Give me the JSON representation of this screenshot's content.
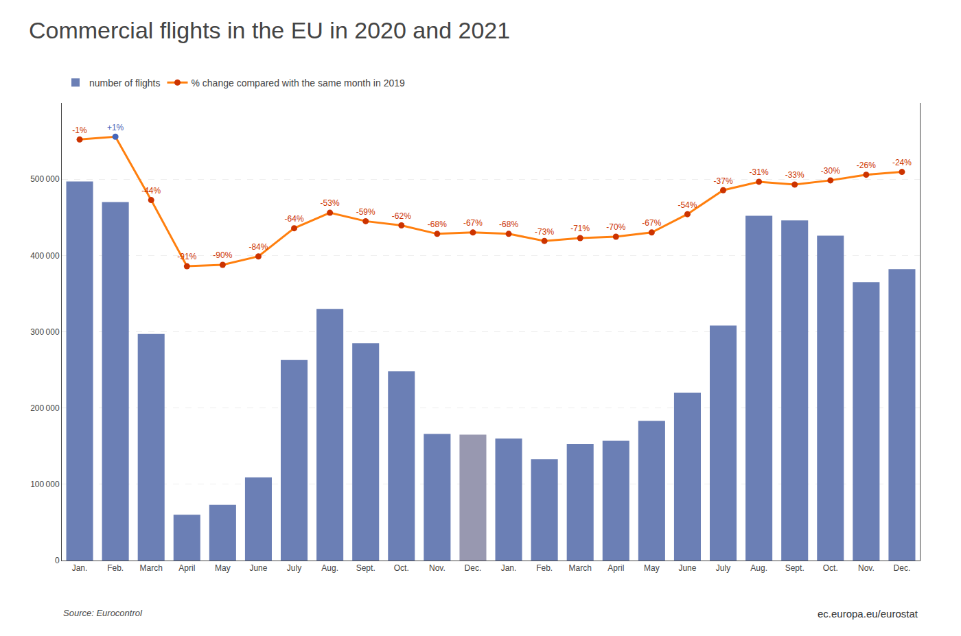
{
  "chart_data": {
    "type": "bar",
    "title": "Commercial flights in the EU in 2020 and 2021",
    "categories": [
      "Jan.",
      "Feb.",
      "March",
      "April",
      "May",
      "June",
      "July",
      "Aug.",
      "Sept.",
      "Oct.",
      "Nov.",
      "Dec.",
      "Jan.",
      "Feb.",
      "March",
      "April",
      "May",
      "June",
      "July",
      "Aug.",
      "Sept.",
      "Oct.",
      "Nov.",
      "Dec."
    ],
    "series": [
      {
        "name": "number of flights",
        "type": "bar",
        "colors": [
          "#6b7fb5",
          "#6b7fb5",
          "#6b7fb5",
          "#6b7fb5",
          "#6b7fb5",
          "#6b7fb5",
          "#6b7fb5",
          "#6b7fb5",
          "#6b7fb5",
          "#6b7fb5",
          "#6b7fb5",
          "#9898b0",
          "#6b7fb5",
          "#6b7fb5",
          "#6b7fb5",
          "#6b7fb5",
          "#6b7fb5",
          "#6b7fb5",
          "#6b7fb5",
          "#6b7fb5",
          "#6b7fb5",
          "#6b7fb5",
          "#6b7fb5",
          "#6b7fb5"
        ],
        "values": [
          497000,
          470000,
          297000,
          60000,
          73000,
          109000,
          263000,
          330000,
          285000,
          248000,
          166000,
          165000,
          160000,
          133000,
          153000,
          157000,
          183000,
          220000,
          308000,
          452000,
          446000,
          426000,
          365000,
          382000
        ]
      },
      {
        "name": "% change compared with the same month in 2019",
        "type": "line",
        "axis": "y2",
        "marker": "circle",
        "data_labels": true,
        "colors": [
          "#cc3300",
          "#4466bb",
          "#cc3300",
          "#cc3300",
          "#cc3300",
          "#cc3300",
          "#cc3300",
          "#cc3300",
          "#cc3300",
          "#cc3300",
          "#cc3300",
          "#cc3300",
          "#cc3300",
          "#cc3300",
          "#cc3300",
          "#cc3300",
          "#cc3300",
          "#cc3300",
          "#cc3300",
          "#cc3300",
          "#cc3300",
          "#cc3300",
          "#cc3300",
          "#cc3300"
        ],
        "values": [
          -1,
          1,
          -44,
          -91,
          -90,
          -84,
          -64,
          -53,
          -59,
          -62,
          -68,
          -67,
          -68,
          -73,
          -71,
          -70,
          -67,
          -54,
          -37,
          -31,
          -33,
          -30,
          -26,
          -24
        ],
        "value_labels": [
          "-1%",
          "+1%",
          "-44%",
          "-91%",
          "-90%",
          "-84%",
          "-64%",
          "-53%",
          "-59%",
          "-62%",
          "-68%",
          "-67%",
          "-68%",
          "-73%",
          "-71%",
          "-70%",
          "-67%",
          "-54%",
          "-37%",
          "-31%",
          "-33%",
          "-30%",
          "-26%",
          "-24%"
        ]
      }
    ],
    "ylim": [
      0,
      600000
    ],
    "yticks": [
      0,
      {
        "value": 100000,
        "label": "100 000"
      },
      {
        "value": 200000,
        "label": "200 000"
      },
      {
        "value": 300000,
        "label": "300 000"
      },
      {
        "value": 400000,
        "label": "400 000"
      },
      {
        "value": 500000,
        "label": "500 000"
      }
    ],
    "y2lim": [
      -300,
      25
    ],
    "y2ticks": [],
    "grid": true,
    "legend": "top left",
    "annotations": [
      "Source: Eurocontrol",
      "ec.europa.eu/eurostat"
    ]
  }
}
